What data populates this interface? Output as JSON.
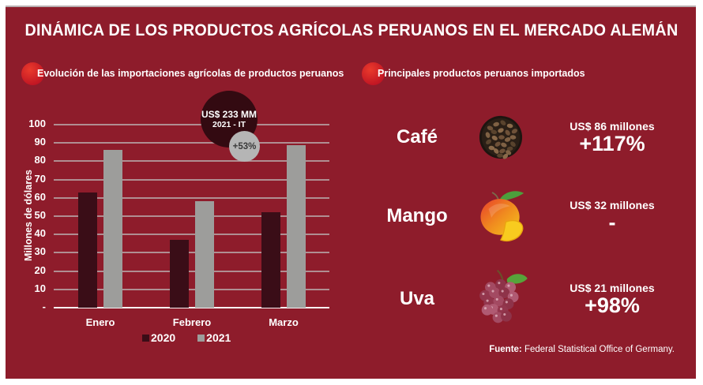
{
  "page": {
    "title": "DINÁMICA DE LOS PRODUCTOS AGRÍCOLAS PERUANOS EN EL MERCADO ALEMÁN",
    "source_label": "Fuente:",
    "source_text": "Federal Statistical Office of Germany."
  },
  "left_section": {
    "heading": "Evolución de las importaciones agrícolas de productos peruanos"
  },
  "right_section": {
    "heading": "Principales productos peruanos importados",
    "products": [
      {
        "name": "Café",
        "icon": "coffee-beans-bowl",
        "value": "US$ 86 millones",
        "change": "+117%"
      },
      {
        "name": "Mango",
        "icon": "mango-fruit",
        "value": "US$ 32 millones",
        "change": "-"
      },
      {
        "name": "Uva",
        "icon": "grapes-bunch",
        "value": "US$ 21 millones",
        "change": "+98%"
      }
    ]
  },
  "chart_data": {
    "type": "bar",
    "title": "Evolución de las importaciones agrícolas de productos peruanos",
    "categories": [
      "Enero",
      "Febrero",
      "Marzo"
    ],
    "series": [
      {
        "name": "2020",
        "color": "#3a0d17",
        "values": [
          63,
          37,
          52
        ]
      },
      {
        "name": "2021",
        "color": "#9d9d9b",
        "values": [
          86,
          58,
          89
        ]
      }
    ],
    "xlabel": "",
    "ylabel": "Millones de dólares",
    "ylim": [
      0,
      100
    ],
    "ytick_step": 10,
    "zero_tick_label": "-",
    "grid": true,
    "legend_position": "bottom",
    "annotation": {
      "total_label": "US$ 233 MM",
      "period_label": "2021 - IT",
      "growth_label": "+53%"
    }
  },
  "colors": {
    "panel_background": "#8e1c2b",
    "series_2020": "#3a0d17",
    "series_2021": "#9d9d9b",
    "annotation_circle_dark": "#330a11",
    "annotation_circle_gray": "#b5b5b5",
    "bullet_red": "#d01d23",
    "text_white": "#ffffff"
  }
}
